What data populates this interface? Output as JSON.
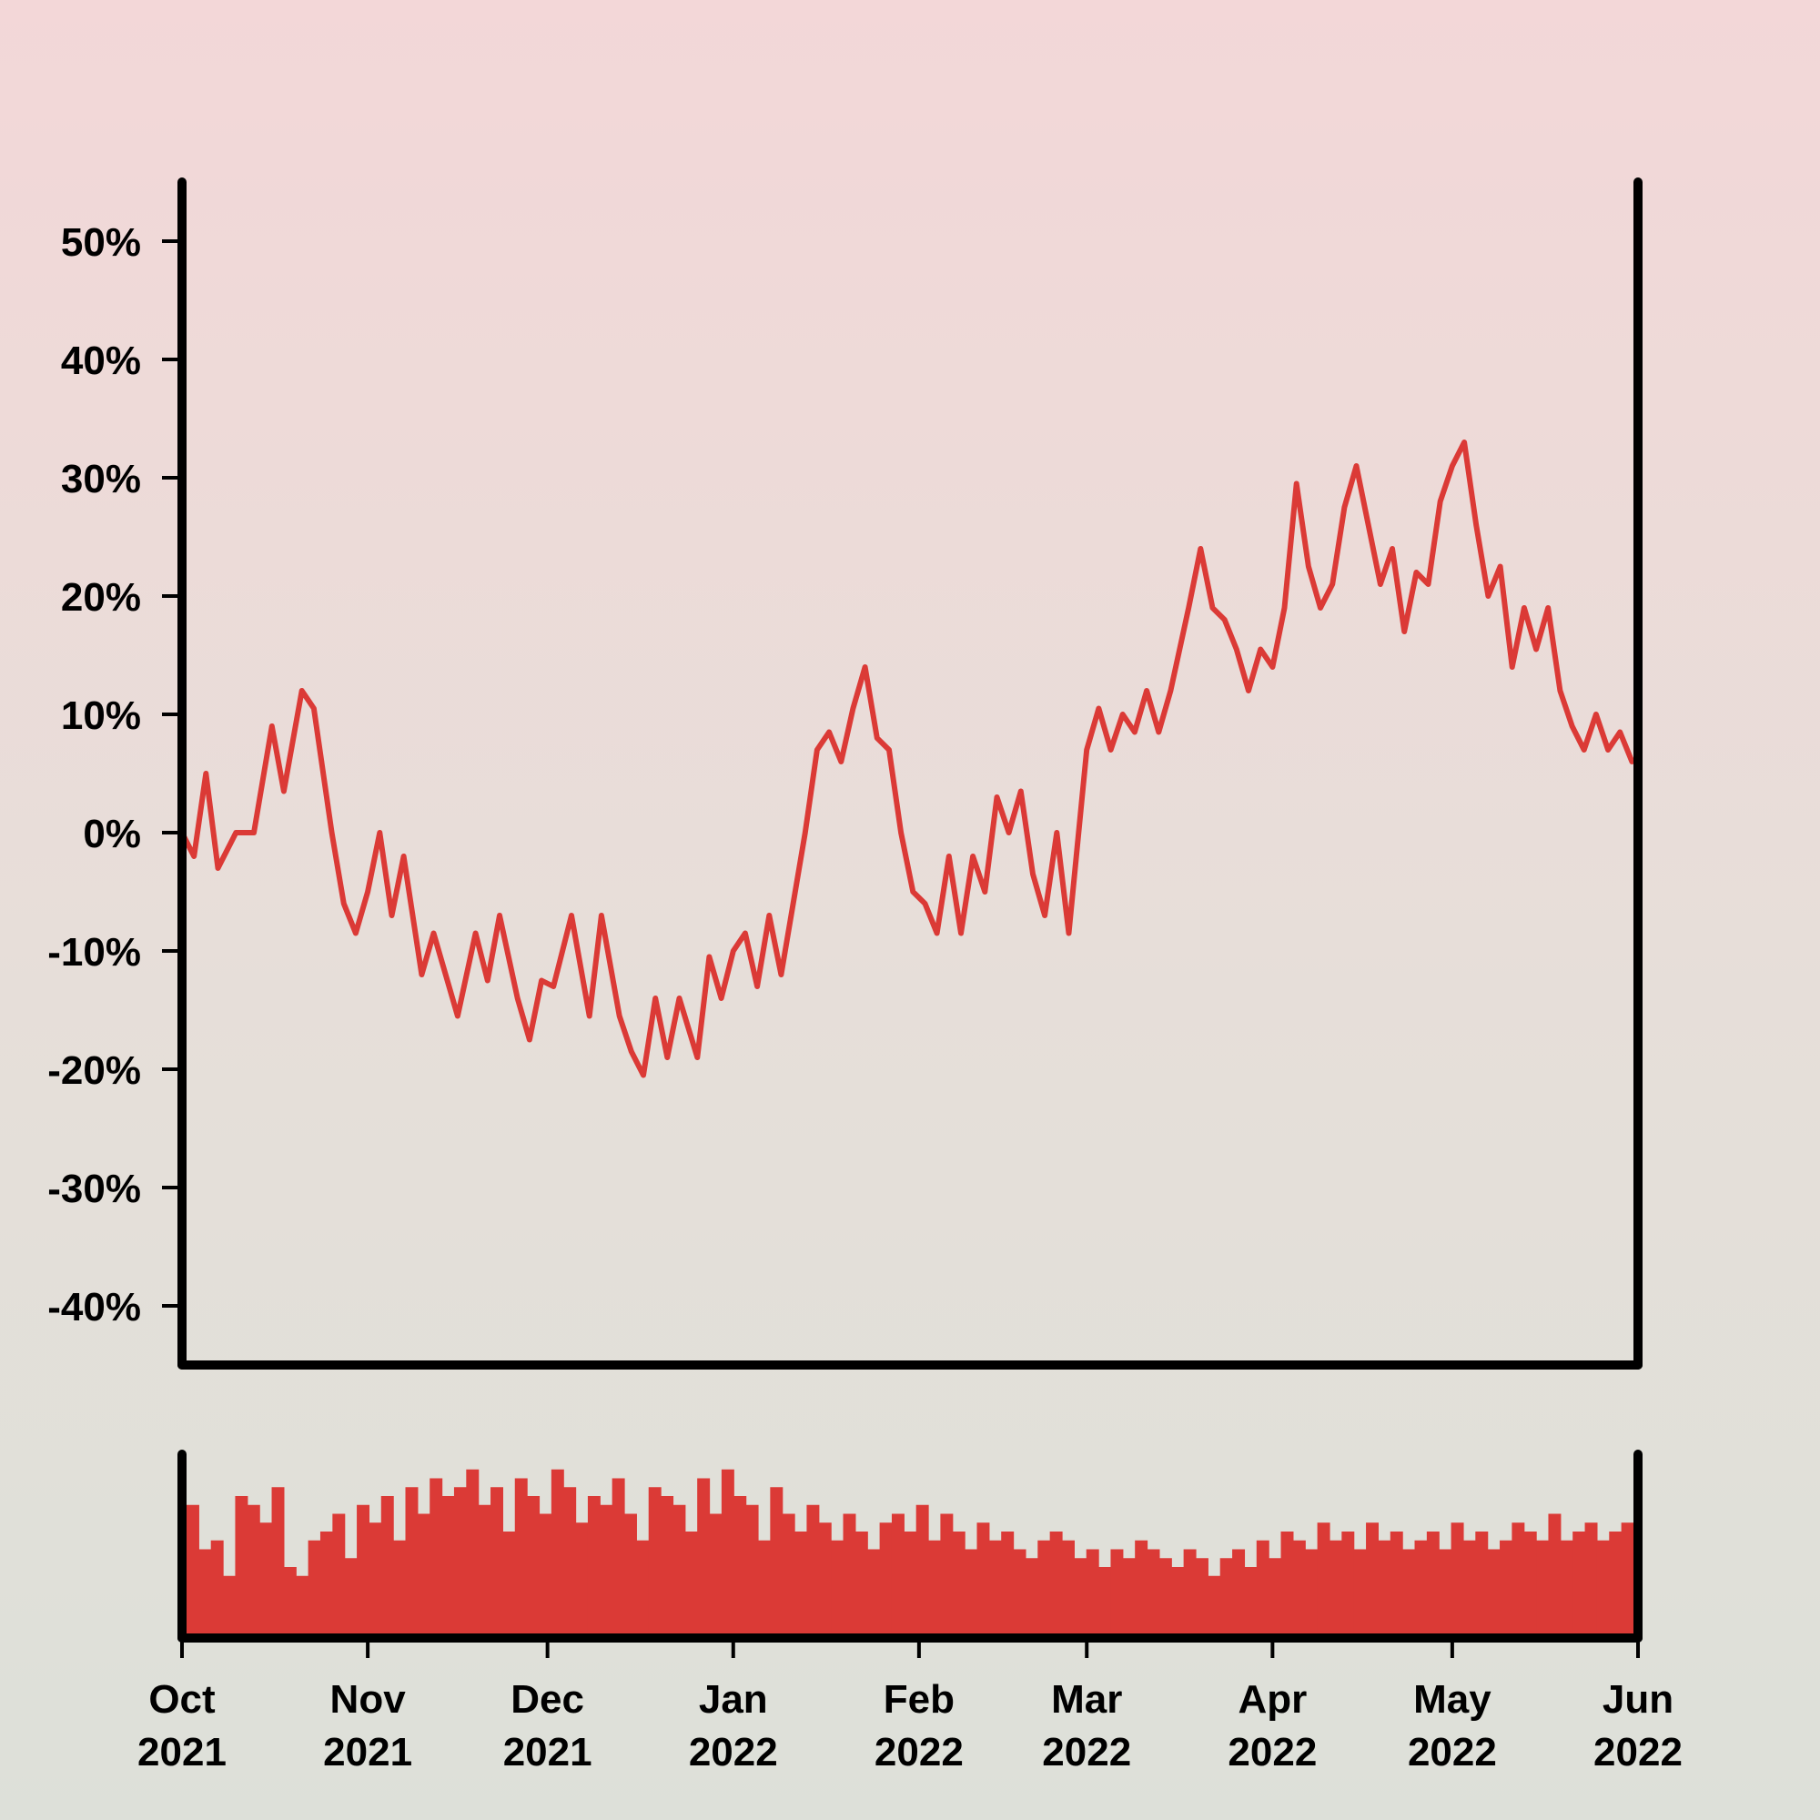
{
  "chart_data": [
    {
      "type": "line",
      "title": "",
      "xlabel": "",
      "ylabel": "",
      "xlim": [
        "2021-10-01",
        "2022-06-01"
      ],
      "ylim": [
        -0.45,
        0.55
      ],
      "y_ticks": [
        -0.4,
        -0.3,
        -0.2,
        -0.1,
        0,
        0.1,
        0.2,
        0.3,
        0.4,
        0.5
      ],
      "y_tick_labels": [
        "-40%",
        "-30%",
        "-20%",
        "-10%",
        "0%",
        "10%",
        "20%",
        "30%",
        "40%",
        "50%"
      ],
      "grid": false,
      "line_color": "#db3a36",
      "series": [
        {
          "points": [
            [
              "2021-10-01",
              0.0
            ],
            [
              "2021-10-03",
              -0.02
            ],
            [
              "2021-10-05",
              0.05
            ],
            [
              "2021-10-07",
              -0.03
            ],
            [
              "2021-10-10",
              0.0
            ],
            [
              "2021-10-13",
              0.0
            ],
            [
              "2021-10-16",
              0.09
            ],
            [
              "2021-10-18",
              0.035
            ],
            [
              "2021-10-21",
              0.12
            ],
            [
              "2021-10-23",
              0.105
            ],
            [
              "2021-10-26",
              0.0
            ],
            [
              "2021-10-28",
              -0.06
            ],
            [
              "2021-10-30",
              -0.085
            ],
            [
              "2021-11-01",
              -0.05
            ],
            [
              "2021-11-03",
              0.0
            ],
            [
              "2021-11-05",
              -0.07
            ],
            [
              "2021-11-07",
              -0.02
            ],
            [
              "2021-11-10",
              -0.12
            ],
            [
              "2021-11-12",
              -0.085
            ],
            [
              "2021-11-14",
              -0.12
            ],
            [
              "2021-11-16",
              -0.155
            ],
            [
              "2021-11-19",
              -0.085
            ],
            [
              "2021-11-21",
              -0.125
            ],
            [
              "2021-11-23",
              -0.07
            ],
            [
              "2021-11-26",
              -0.14
            ],
            [
              "2021-11-28",
              -0.175
            ],
            [
              "2021-11-30",
              -0.125
            ],
            [
              "2021-12-02",
              -0.13
            ],
            [
              "2021-12-05",
              -0.07
            ],
            [
              "2021-12-08",
              -0.155
            ],
            [
              "2021-12-10",
              -0.07
            ],
            [
              "2021-12-13",
              -0.155
            ],
            [
              "2021-12-15",
              -0.185
            ],
            [
              "2021-12-17",
              -0.205
            ],
            [
              "2021-12-19",
              -0.14
            ],
            [
              "2021-12-21",
              -0.19
            ],
            [
              "2021-12-23",
              -0.14
            ],
            [
              "2021-12-26",
              -0.19
            ],
            [
              "2021-12-28",
              -0.105
            ],
            [
              "2021-12-30",
              -0.14
            ],
            [
              "2022-01-01",
              -0.1
            ],
            [
              "2022-01-03",
              -0.085
            ],
            [
              "2022-01-05",
              -0.13
            ],
            [
              "2022-01-07",
              -0.07
            ],
            [
              "2022-01-09",
              -0.12
            ],
            [
              "2022-01-11",
              -0.06
            ],
            [
              "2022-01-13",
              0.0
            ],
            [
              "2022-01-15",
              0.07
            ],
            [
              "2022-01-17",
              0.085
            ],
            [
              "2022-01-19",
              0.06
            ],
            [
              "2022-01-21",
              0.105
            ],
            [
              "2022-01-23",
              0.14
            ],
            [
              "2022-01-25",
              0.08
            ],
            [
              "2022-01-27",
              0.07
            ],
            [
              "2022-01-29",
              0.0
            ],
            [
              "2022-01-31",
              -0.05
            ],
            [
              "2022-02-02",
              -0.06
            ],
            [
              "2022-02-04",
              -0.085
            ],
            [
              "2022-02-06",
              -0.02
            ],
            [
              "2022-02-08",
              -0.085
            ],
            [
              "2022-02-10",
              -0.02
            ],
            [
              "2022-02-12",
              -0.05
            ],
            [
              "2022-02-14",
              0.03
            ],
            [
              "2022-02-16",
              0.0
            ],
            [
              "2022-02-18",
              0.035
            ],
            [
              "2022-02-20",
              -0.035
            ],
            [
              "2022-02-22",
              -0.07
            ],
            [
              "2022-02-24",
              0.0
            ],
            [
              "2022-02-26",
              -0.085
            ],
            [
              "2022-03-01",
              0.07
            ],
            [
              "2022-03-03",
              0.105
            ],
            [
              "2022-03-05",
              0.07
            ],
            [
              "2022-03-07",
              0.1
            ],
            [
              "2022-03-09",
              0.085
            ],
            [
              "2022-03-11",
              0.12
            ],
            [
              "2022-03-13",
              0.085
            ],
            [
              "2022-03-15",
              0.12
            ],
            [
              "2022-03-18",
              0.19
            ],
            [
              "2022-03-20",
              0.24
            ],
            [
              "2022-03-22",
              0.19
            ],
            [
              "2022-03-24",
              0.18
            ],
            [
              "2022-03-26",
              0.155
            ],
            [
              "2022-03-28",
              0.12
            ],
            [
              "2022-03-30",
              0.155
            ],
            [
              "2022-04-01",
              0.14
            ],
            [
              "2022-04-03",
              0.19
            ],
            [
              "2022-04-05",
              0.295
            ],
            [
              "2022-04-07",
              0.225
            ],
            [
              "2022-04-09",
              0.19
            ],
            [
              "2022-04-11",
              0.21
            ],
            [
              "2022-04-13",
              0.275
            ],
            [
              "2022-04-15",
              0.31
            ],
            [
              "2022-04-17",
              0.26
            ],
            [
              "2022-04-19",
              0.21
            ],
            [
              "2022-04-21",
              0.24
            ],
            [
              "2022-04-23",
              0.17
            ],
            [
              "2022-04-25",
              0.22
            ],
            [
              "2022-04-27",
              0.21
            ],
            [
              "2022-04-29",
              0.28
            ],
            [
              "2022-05-01",
              0.31
            ],
            [
              "2022-05-03",
              0.33
            ],
            [
              "2022-05-05",
              0.26
            ],
            [
              "2022-05-07",
              0.2
            ],
            [
              "2022-05-09",
              0.225
            ],
            [
              "2022-05-11",
              0.14
            ],
            [
              "2022-05-13",
              0.19
            ],
            [
              "2022-05-15",
              0.155
            ],
            [
              "2022-05-17",
              0.19
            ],
            [
              "2022-05-19",
              0.12
            ],
            [
              "2022-05-21",
              0.09
            ],
            [
              "2022-05-23",
              0.07
            ],
            [
              "2022-05-25",
              0.1
            ],
            [
              "2022-05-27",
              0.07
            ],
            [
              "2022-05-29",
              0.085
            ],
            [
              "2022-05-31",
              0.06
            ]
          ]
        }
      ]
    },
    {
      "type": "bar",
      "title": "",
      "xlabel": "",
      "ylabel": "",
      "xlim": [
        "2021-10-01",
        "2022-06-01"
      ],
      "x_tick_labels": [
        "Oct\n2021",
        "Nov\n2021",
        "Dec\n2021",
        "Jan\n2022",
        "Feb\n2022",
        "Mar\n2022",
        "Apr\n2022",
        "May\n2022",
        "Jun\n2022"
      ],
      "ylim": [
        0,
        1
      ],
      "bar_color": "#db3a36",
      "values": [
        0.75,
        0.5,
        0.55,
        0.35,
        0.8,
        0.75,
        0.65,
        0.85,
        0.4,
        0.35,
        0.55,
        0.6,
        0.7,
        0.45,
        0.75,
        0.65,
        0.8,
        0.55,
        0.85,
        0.7,
        0.9,
        0.8,
        0.85,
        0.95,
        0.75,
        0.85,
        0.6,
        0.9,
        0.8,
        0.7,
        0.95,
        0.85,
        0.65,
        0.8,
        0.75,
        0.9,
        0.7,
        0.55,
        0.85,
        0.8,
        0.75,
        0.6,
        0.9,
        0.7,
        0.95,
        0.8,
        0.75,
        0.55,
        0.85,
        0.7,
        0.6,
        0.75,
        0.65,
        0.55,
        0.7,
        0.6,
        0.5,
        0.65,
        0.7,
        0.6,
        0.75,
        0.55,
        0.7,
        0.6,
        0.5,
        0.65,
        0.55,
        0.6,
        0.5,
        0.45,
        0.55,
        0.6,
        0.55,
        0.45,
        0.5,
        0.4,
        0.5,
        0.45,
        0.55,
        0.5,
        0.45,
        0.4,
        0.5,
        0.45,
        0.35,
        0.45,
        0.5,
        0.4,
        0.55,
        0.45,
        0.6,
        0.55,
        0.5,
        0.65,
        0.55,
        0.6,
        0.5,
        0.65,
        0.55,
        0.6,
        0.5,
        0.55,
        0.6,
        0.5,
        0.65,
        0.55,
        0.6,
        0.5,
        0.55,
        0.65,
        0.6,
        0.55,
        0.7,
        0.55,
        0.6,
        0.65,
        0.55,
        0.6,
        0.65
      ]
    }
  ]
}
